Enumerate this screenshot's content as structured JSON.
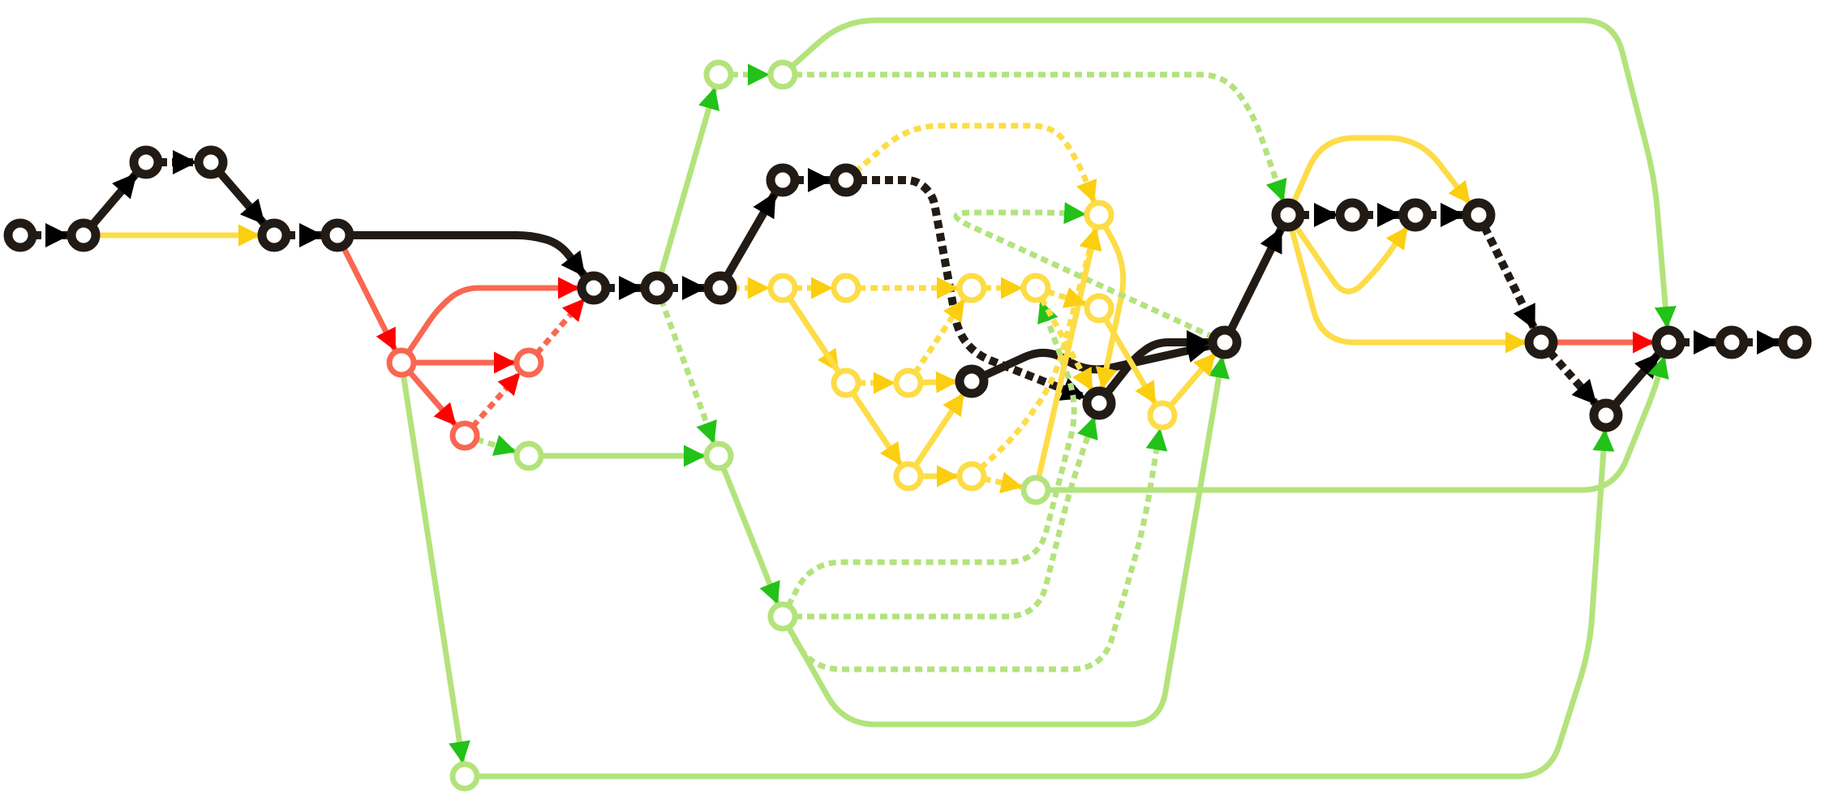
{
  "diagram": {
    "type": "graph-flow-diagram",
    "colors": {
      "background": "#ffffff",
      "black": "#221b15",
      "yellow": "#fddc46",
      "red": "#f96751",
      "green": "#b3e37c",
      "black_arrow": "#000000",
      "yellow_arrow": "#fbce0f",
      "red_arrow": "#ff0000",
      "green_arrow": "#22c219"
    },
    "node_count": 45,
    "edge_count": 79
  }
}
